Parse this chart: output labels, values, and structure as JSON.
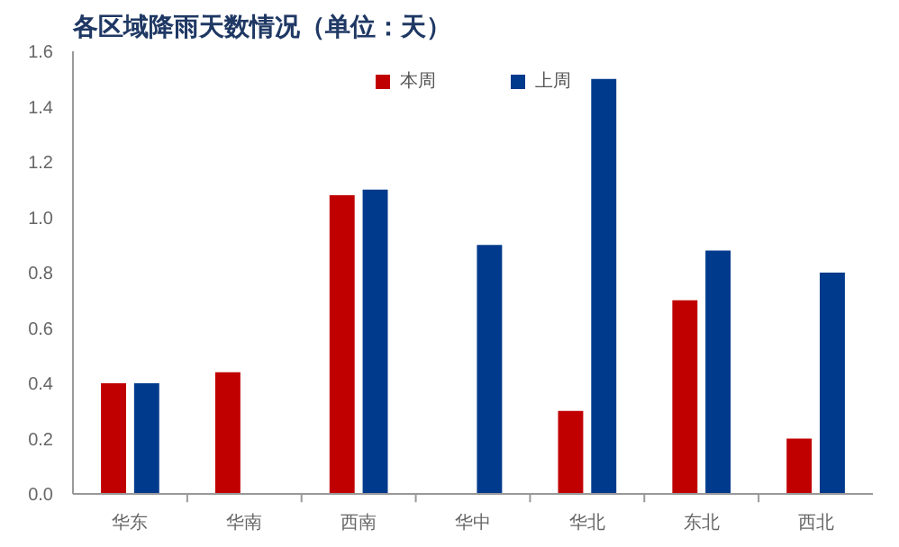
{
  "chart_data": {
    "type": "bar",
    "title": "各区域降雨天数情况（单位：天）",
    "categories": [
      "华东",
      "华南",
      "西南",
      "华中",
      "华北",
      "东北",
      "西北"
    ],
    "series": [
      {
        "name": "本周",
        "color": "#c00000",
        "values": [
          0.4,
          0.44,
          1.08,
          0,
          0.3,
          0.7,
          0.2
        ]
      },
      {
        "name": "上周",
        "color": "#003a8c",
        "values": [
          0.4,
          0,
          1.1,
          0.9,
          1.5,
          0.88,
          0.8
        ]
      }
    ],
    "ylim": [
      0,
      1.6
    ],
    "yticks": [
      {
        "value": 0,
        "label": "0.0"
      },
      {
        "value": 0.2,
        "label": "0.2"
      },
      {
        "value": 0.4,
        "label": "0.4"
      },
      {
        "value": 0.6,
        "label": "0.6"
      },
      {
        "value": 0.8,
        "label": "0.8"
      },
      {
        "value": 1.0,
        "label": "1.0"
      },
      {
        "value": 1.2,
        "label": "1.2"
      },
      {
        "value": 1.4,
        "label": "1.4"
      },
      {
        "value": 1.6,
        "label": "1.6"
      }
    ],
    "grid": false,
    "legend": "top"
  }
}
